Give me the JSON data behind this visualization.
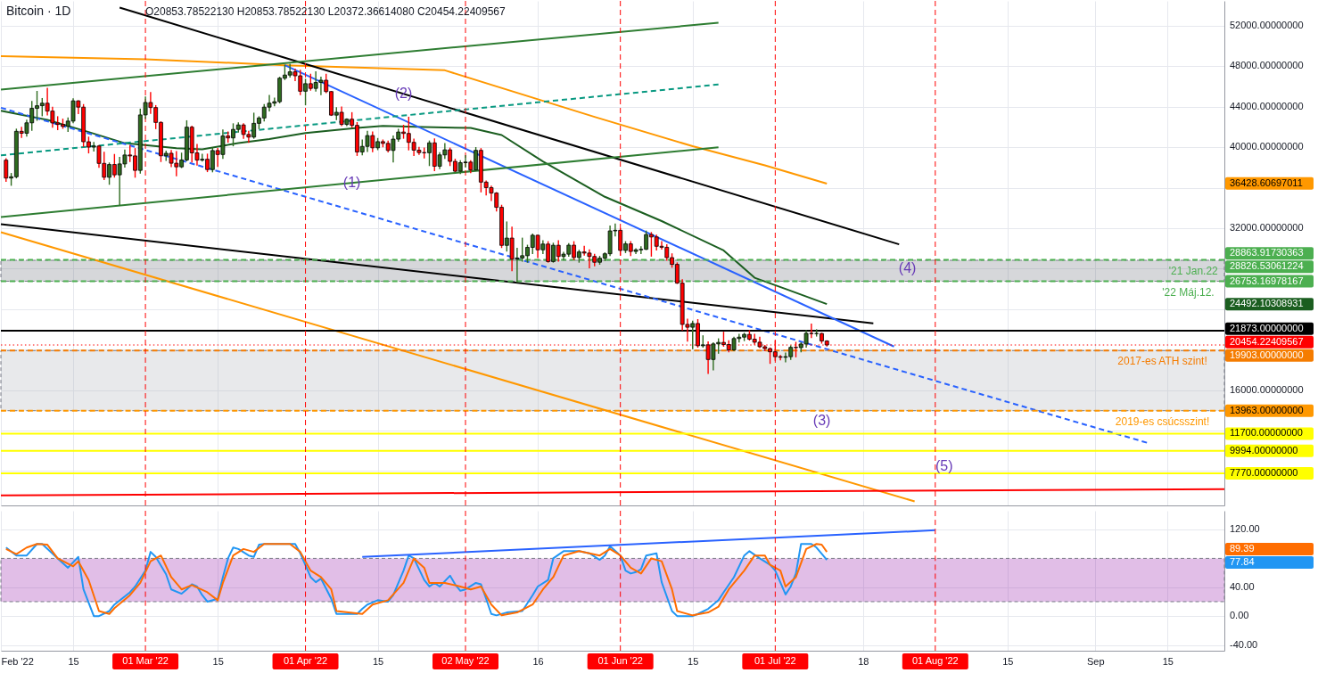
{
  "chart_data": [
    {
      "type": "candlestick",
      "title": "Bitcoin · 1D",
      "subtitle": "O20853.78522130 H20853.78522130 L20372.36614080 C20454.22409567",
      "x": [
        "2022-02-02",
        "2022-02-03",
        "2022-02-04",
        "2022-02-05",
        "2022-02-06",
        "2022-02-07",
        "2022-02-08",
        "2022-02-09",
        "2022-02-10",
        "2022-02-11",
        "2022-02-12",
        "2022-02-13",
        "2022-02-14",
        "2022-02-15",
        "2022-02-16",
        "2022-02-17",
        "2022-02-18",
        "2022-02-19",
        "2022-02-20",
        "2022-02-21",
        "2022-02-22",
        "2022-02-23",
        "2022-02-24",
        "2022-02-25",
        "2022-02-26",
        "2022-02-27",
        "2022-02-28",
        "2022-03-01",
        "2022-03-02",
        "2022-03-03",
        "2022-03-04",
        "2022-03-05",
        "2022-03-06",
        "2022-03-07",
        "2022-03-08",
        "2022-03-09",
        "2022-03-10",
        "2022-03-11",
        "2022-03-12",
        "2022-03-13",
        "2022-03-14",
        "2022-03-15",
        "2022-03-16",
        "2022-03-17",
        "2022-03-18",
        "2022-03-19",
        "2022-03-20",
        "2022-03-21",
        "2022-03-22",
        "2022-03-23",
        "2022-03-24",
        "2022-03-25",
        "2022-03-26",
        "2022-03-27",
        "2022-03-28",
        "2022-03-29",
        "2022-03-30",
        "2022-03-31",
        "2022-04-01",
        "2022-04-02",
        "2022-04-03",
        "2022-04-04",
        "2022-04-05",
        "2022-04-06",
        "2022-04-07",
        "2022-04-08",
        "2022-04-09",
        "2022-04-10",
        "2022-04-11",
        "2022-04-12",
        "2022-04-13",
        "2022-04-14",
        "2022-04-15",
        "2022-04-16",
        "2022-04-17",
        "2022-04-18",
        "2022-04-19",
        "2022-04-20",
        "2022-04-21",
        "2022-04-22",
        "2022-04-23",
        "2022-04-24",
        "2022-04-25",
        "2022-04-26",
        "2022-04-27",
        "2022-04-28",
        "2022-04-29",
        "2022-04-30",
        "2022-05-01",
        "2022-05-02",
        "2022-05-03",
        "2022-05-04",
        "2022-05-05",
        "2022-05-06",
        "2022-05-07",
        "2022-05-08",
        "2022-05-09",
        "2022-05-10",
        "2022-05-11",
        "2022-05-12",
        "2022-05-13",
        "2022-05-14",
        "2022-05-15",
        "2022-05-16",
        "2022-05-17",
        "2022-05-18",
        "2022-05-19",
        "2022-05-20",
        "2022-05-21",
        "2022-05-22",
        "2022-05-23",
        "2022-05-24",
        "2022-05-25",
        "2022-05-26",
        "2022-05-27",
        "2022-05-28",
        "2022-05-29",
        "2022-05-30",
        "2022-05-31",
        "2022-06-01",
        "2022-06-02",
        "2022-06-03",
        "2022-06-04",
        "2022-06-05",
        "2022-06-06",
        "2022-06-07",
        "2022-06-08",
        "2022-06-09",
        "2022-06-10",
        "2022-06-11",
        "2022-06-12",
        "2022-06-13",
        "2022-06-14",
        "2022-06-15",
        "2022-06-16",
        "2022-06-17",
        "2022-06-18",
        "2022-06-19",
        "2022-06-20",
        "2022-06-21",
        "2022-06-22",
        "2022-06-23",
        "2022-06-24",
        "2022-06-25",
        "2022-06-26",
        "2022-06-27",
        "2022-06-28",
        "2022-06-29",
        "2022-06-30",
        "2022-07-01",
        "2022-07-02",
        "2022-07-03",
        "2022-07-04",
        "2022-07-05",
        "2022-07-06",
        "2022-07-07",
        "2022-07-08",
        "2022-07-09",
        "2022-07-10",
        "2022-07-11"
      ],
      "ohlc": [
        [
          38720,
          38860,
          36630,
          36950
        ],
        [
          36950,
          37390,
          36250,
          37080
        ],
        [
          37080,
          41770,
          36980,
          41570
        ],
        [
          41570,
          41950,
          40980,
          41380
        ],
        [
          41380,
          42660,
          41120,
          42410
        ],
        [
          42410,
          44500,
          41680,
          43840
        ],
        [
          43840,
          45500,
          42670,
          44100
        ],
        [
          44100,
          44800,
          43120,
          44350
        ],
        [
          44350,
          45820,
          43200,
          43570
        ],
        [
          43570,
          43940,
          42000,
          42400
        ],
        [
          42400,
          43000,
          41750,
          42250
        ],
        [
          42250,
          42760,
          41880,
          42060
        ],
        [
          42060,
          42880,
          41570,
          42580
        ],
        [
          42580,
          44770,
          42430,
          44580
        ],
        [
          44580,
          44580,
          43330,
          43960
        ],
        [
          43960,
          44200,
          40080,
          40540
        ],
        [
          40540,
          40980,
          39450,
          40010
        ],
        [
          40010,
          40450,
          39640,
          40120
        ],
        [
          40120,
          40150,
          38020,
          38400
        ],
        [
          38400,
          39490,
          36810,
          37030
        ],
        [
          37030,
          38430,
          36350,
          38290
        ],
        [
          38290,
          39270,
          37060,
          37270
        ],
        [
          37270,
          38980,
          34320,
          38350
        ],
        [
          38350,
          39700,
          38050,
          39230
        ],
        [
          39230,
          40120,
          38600,
          39140
        ],
        [
          39140,
          39850,
          37050,
          37710
        ],
        [
          37710,
          43750,
          37450,
          43190
        ],
        [
          43190,
          44950,
          42850,
          44420
        ],
        [
          44420,
          45400,
          43350,
          43920
        ],
        [
          43920,
          44100,
          41850,
          42450
        ],
        [
          42450,
          42500,
          38600,
          39150
        ],
        [
          39150,
          39600,
          38700,
          39400
        ],
        [
          39400,
          39660,
          38100,
          38420
        ],
        [
          38420,
          39550,
          37180,
          38060
        ],
        [
          38060,
          39400,
          38000,
          38740
        ],
        [
          38740,
          42600,
          38670,
          41980
        ],
        [
          41980,
          42060,
          38550,
          39440
        ],
        [
          39440,
          40250,
          38250,
          38730
        ],
        [
          38730,
          39300,
          38650,
          38810
        ],
        [
          38810,
          39300,
          37600,
          37790
        ],
        [
          37790,
          39920,
          37580,
          39670
        ],
        [
          39670,
          39870,
          38120,
          39280
        ],
        [
          39280,
          41700,
          38900,
          41110
        ],
        [
          41110,
          41500,
          40520,
          40920
        ],
        [
          40920,
          42300,
          40150,
          41760
        ],
        [
          41760,
          42400,
          41500,
          42200
        ],
        [
          42200,
          42300,
          40900,
          41260
        ],
        [
          41260,
          41550,
          40500,
          41000
        ],
        [
          41000,
          43350,
          40900,
          42360
        ],
        [
          42360,
          43000,
          41850,
          42890
        ],
        [
          42890,
          44200,
          42600,
          43960
        ],
        [
          43960,
          45100,
          43600,
          44350
        ],
        [
          44350,
          44850,
          44100,
          44500
        ],
        [
          44500,
          46900,
          44400,
          46820
        ],
        [
          46820,
          48100,
          46700,
          47130
        ],
        [
          47130,
          48190,
          46950,
          47450
        ],
        [
          47450,
          47700,
          46600,
          47060
        ],
        [
          47060,
          47600,
          45200,
          45530
        ],
        [
          45530,
          46700,
          44200,
          46280
        ],
        [
          46280,
          47200,
          45650,
          45810
        ],
        [
          45810,
          47450,
          45550,
          46400
        ],
        [
          46400,
          46900,
          45200,
          46620
        ],
        [
          46620,
          47200,
          45400,
          45500
        ],
        [
          45500,
          45500,
          43150,
          43170
        ],
        [
          43170,
          43900,
          42750,
          43450
        ],
        [
          43450,
          43950,
          42150,
          42250
        ],
        [
          42250,
          42800,
          42150,
          42770
        ],
        [
          42770,
          43400,
          42000,
          42160
        ],
        [
          42160,
          42420,
          39200,
          39530
        ],
        [
          39530,
          40700,
          39250,
          40080
        ],
        [
          40080,
          41550,
          39600,
          41150
        ],
        [
          41150,
          41500,
          39570,
          39940
        ],
        [
          39940,
          40850,
          39770,
          40550
        ],
        [
          40550,
          40700,
          40050,
          40380
        ],
        [
          40380,
          40600,
          39550,
          39680
        ],
        [
          39680,
          41100,
          38550,
          40800
        ],
        [
          40800,
          41750,
          40600,
          41500
        ],
        [
          41500,
          42150,
          40900,
          41360
        ],
        [
          41360,
          42950,
          39750,
          40480
        ],
        [
          40480,
          40780,
          39200,
          39710
        ],
        [
          39710,
          39980,
          39300,
          39470
        ],
        [
          39470,
          39900,
          38950,
          39450
        ],
        [
          39450,
          40600,
          38200,
          40430
        ],
        [
          40430,
          40800,
          37700,
          38120
        ],
        [
          38120,
          39450,
          37900,
          39240
        ],
        [
          39240,
          40350,
          38900,
          39740
        ],
        [
          39740,
          39900,
          38200,
          38600
        ],
        [
          38600,
          38800,
          37600,
          37630
        ],
        [
          37630,
          38650,
          37400,
          38470
        ],
        [
          38470,
          39150,
          38050,
          38530
        ],
        [
          38530,
          38650,
          37500,
          37750
        ],
        [
          37750,
          39950,
          37700,
          39690
        ],
        [
          39690,
          39850,
          35600,
          36550
        ],
        [
          36550,
          36650,
          35300,
          36010
        ],
        [
          36010,
          36150,
          34750,
          35470
        ],
        [
          35470,
          35500,
          33700,
          34060
        ],
        [
          34060,
          34250,
          30100,
          30300
        ],
        [
          30300,
          32600,
          29750,
          31020
        ],
        [
          31020,
          32100,
          27800,
          28940
        ],
        [
          28940,
          30000,
          26700,
          29050
        ],
        [
          29050,
          31000,
          28750,
          29280
        ],
        [
          29280,
          30300,
          28650,
          30100
        ],
        [
          30100,
          31400,
          29500,
          31300
        ],
        [
          31300,
          31300,
          29100,
          29860
        ],
        [
          29860,
          30750,
          29500,
          30430
        ],
        [
          30430,
          30650,
          28650,
          28700
        ],
        [
          28700,
          30500,
          28650,
          30310
        ],
        [
          30310,
          30750,
          28750,
          29200
        ],
        [
          29200,
          29600,
          28900,
          29430
        ],
        [
          29430,
          30450,
          29250,
          30320
        ],
        [
          30320,
          30650,
          28900,
          29100
        ],
        [
          29100,
          29800,
          28650,
          29650
        ],
        [
          29650,
          30200,
          29350,
          29540
        ],
        [
          29540,
          29850,
          28100,
          29200
        ],
        [
          29200,
          29400,
          28300,
          28630
        ],
        [
          28630,
          29200,
          28450,
          29030
        ],
        [
          29030,
          29550,
          28800,
          29470
        ],
        [
          29470,
          32200,
          29300,
          31730
        ],
        [
          31730,
          32400,
          31250,
          31790
        ],
        [
          31790,
          31950,
          29350,
          29800
        ],
        [
          29800,
          30650,
          29600,
          30450
        ],
        [
          30450,
          30650,
          29300,
          29700
        ],
        [
          29700,
          29950,
          29500,
          29860
        ],
        [
          29860,
          30150,
          29500,
          29910
        ],
        [
          29910,
          31700,
          29900,
          31370
        ],
        [
          31370,
          31550,
          29250,
          31130
        ],
        [
          31130,
          31300,
          29850,
          30210
        ],
        [
          30210,
          30650,
          29950,
          30110
        ],
        [
          30110,
          30350,
          28850,
          29090
        ],
        [
          29090,
          29450,
          28150,
          28420
        ],
        [
          28420,
          28550,
          26550,
          26570
        ],
        [
          26570,
          26900,
          21950,
          22490
        ],
        [
          22490,
          23000,
          20850,
          22210
        ],
        [
          22210,
          22800,
          20100,
          22580
        ],
        [
          22580,
          22950,
          20250,
          20380
        ],
        [
          20380,
          21350,
          20250,
          20470
        ],
        [
          20470,
          20750,
          17650,
          19020
        ],
        [
          19020,
          20650,
          18000,
          20560
        ],
        [
          20560,
          21050,
          19650,
          20710
        ],
        [
          20710,
          21700,
          20350,
          20500
        ],
        [
          20500,
          20850,
          19800,
          19970
        ],
        [
          19970,
          21200,
          19900,
          21090
        ],
        [
          21090,
          21500,
          20750,
          21230
        ],
        [
          21230,
          21600,
          20900,
          21500
        ],
        [
          21500,
          21850,
          20950,
          21030
        ],
        [
          21030,
          21500,
          20550,
          20730
        ],
        [
          20730,
          21200,
          20200,
          20280
        ],
        [
          20280,
          20400,
          19900,
          20100
        ],
        [
          20100,
          20150,
          18650,
          19780
        ],
        [
          19780,
          20850,
          18950,
          19300
        ],
        [
          19300,
          19400,
          19000,
          19240
        ],
        [
          19240,
          19650,
          18800,
          19300
        ],
        [
          19300,
          20350,
          19050,
          20220
        ],
        [
          20220,
          20700,
          19300,
          20190
        ],
        [
          20190,
          20650,
          19800,
          20550
        ],
        [
          20550,
          21850,
          20250,
          21610
        ],
        [
          21610,
          22500,
          21200,
          21580
        ],
        [
          21580,
          21950,
          21350,
          21590
        ],
        [
          21590,
          21600,
          20650,
          20850
        ],
        [
          20853.7852213,
          20853.7852213,
          20372.3661408,
          20454.22409567
        ]
      ],
      "series": [
        {
          "type": "line",
          "color": "#ff9800",
          "x": [
            "2022-02-01",
            "2022-03-01",
            "2022-03-28",
            "2022-04-28",
            "2022-05-27",
            "2022-06-15",
            "2022-06-29",
            "2022-07-11"
          ],
          "values": [
            49000,
            48700,
            48100,
            47600,
            43000,
            40100,
            38200,
            36400
          ]
        },
        {
          "type": "line",
          "color": "#1b5e20",
          "x": [
            "2022-02-01",
            "2022-02-10",
            "2022-02-18",
            "2022-02-25",
            "2022-03-07",
            "2022-03-12",
            "2022-03-19",
            "2022-03-25",
            "2022-04-01",
            "2022-04-11",
            "2022-04-16",
            "2022-04-24",
            "2022-05-03",
            "2022-05-09",
            "2022-05-17",
            "2022-05-29",
            "2022-06-09",
            "2022-06-21",
            "2022-06-27",
            "2022-07-03",
            "2022-07-11"
          ],
          "values": [
            43600,
            42700,
            41500,
            40400,
            39900,
            39800,
            40400,
            40800,
            41400,
            41900,
            42100,
            42000,
            41900,
            41200,
            38600,
            35100,
            32700,
            29800,
            27100,
            26000,
            24500
          ]
        },
        {
          "type": "line",
          "color": "#000000",
          "x": [
            "2022-02-24",
            "2022-07-25"
          ],
          "values": [
            53800,
            30400
          ]
        },
        {
          "type": "line",
          "color": "#000000",
          "x": [
            "2022-02-01",
            "2022-07-20"
          ],
          "values": [
            32400,
            22600
          ]
        },
        {
          "type": "line",
          "color": "#2962ff",
          "x": [
            "2022-03-28",
            "2022-07-24"
          ],
          "values": [
            48100,
            20300
          ]
        },
        {
          "type": "line",
          "color": "#2962ff",
          "line_style": "dashed",
          "x": [
            "2022-02-01",
            "2022-09-11"
          ],
          "values": [
            43900,
            10800
          ]
        },
        {
          "type": "line",
          "color": "#2e7d32",
          "x": [
            "2022-02-01",
            "2022-06-20"
          ],
          "values": [
            45700,
            52300
          ]
        },
        {
          "type": "line",
          "color": "#2e7d32",
          "x": [
            "2022-02-01",
            "2022-06-20"
          ],
          "values": [
            33100,
            40000
          ]
        },
        {
          "type": "line",
          "color": "#089981",
          "line_style": "dashed",
          "x": [
            "2022-02-01",
            "2022-06-20"
          ],
          "values": [
            39200,
            46200
          ]
        },
        {
          "type": "line",
          "color": "#ff9800",
          "x": [
            "2022-02-01",
            "2022-07-28"
          ],
          "values": [
            31600,
            5000
          ]
        },
        {
          "type": "line",
          "color": "#ff0000",
          "x": [
            "2022-02-01",
            "2022-09-26"
          ],
          "values": [
            5600,
            6200
          ]
        }
      ],
      "xlim": [
        "2022-02-01",
        "2022-09-26"
      ],
      "xticks": [
        {
          "value": "2022-02-01",
          "label": null
        },
        {
          "value": "2022-02-15",
          "label": null
        },
        {
          "value": "2022-03-15",
          "label": null
        },
        {
          "value": "2022-04-15",
          "label": null
        },
        {
          "value": "2022-05-16",
          "label": null
        },
        {
          "value": "2022-06-15",
          "label": null
        },
        {
          "value": "2022-07-18",
          "label": null
        },
        {
          "value": "2022-08-15",
          "label": null
        },
        {
          "value": "2022-09-01",
          "label": null
        },
        {
          "value": "2022-09-15",
          "label": null
        }
      ],
      "ylim": [
        4600,
        54460
      ],
      "yticks": [
        {
          "value": 52000,
          "label": "52000.00000000"
        },
        {
          "value": 48000,
          "label": "48000.00000000"
        },
        {
          "value": 44000,
          "label": "44000.00000000"
        },
        {
          "value": 40000,
          "label": "40000.00000000"
        },
        {
          "value": 36000,
          "label": null
        },
        {
          "value": 32000,
          "label": "32000.00000000"
        },
        {
          "value": 28000,
          "label": null
        },
        {
          "value": 24000,
          "label": null
        },
        {
          "value": 20000,
          "label": null
        },
        {
          "value": 16000,
          "label": "16000.00000000"
        },
        {
          "value": 12000,
          "label": null
        },
        {
          "value": 8000,
          "label": null
        },
        {
          "value": 36428.60697011,
          "label": "36428.60697011"
        },
        {
          "value": 24492.10308931,
          "label": "24492.10308931"
        }
      ],
      "tick_labels": "y",
      "grid": true,
      "bands": [
        {
          "axis": "y",
          "from": 26753.16978167,
          "to": 28826.53061224,
          "color": "#787b86",
          "label": "28826.53061224"
        },
        {
          "axis": "y",
          "from": 13963,
          "to": 19903,
          "color": "#b2b5be"
        }
      ],
      "ref_lines": [
        {
          "axis": "y",
          "value": 28863.91730363,
          "label": "28863.91730363",
          "color": "#4caf50",
          "line_style": "dashed"
        },
        {
          "axis": "y",
          "value": 26753.16978167,
          "label": "26753.16978167",
          "color": "#4caf50",
          "line_style": "dashed"
        },
        {
          "axis": "y",
          "value": 21873,
          "label": "21873.00000000",
          "color": "#000000"
        },
        {
          "axis": "y",
          "value": 20454.22409567,
          "label": "20454.22409567",
          "color": "#ff0000",
          "line_style": "dotted"
        },
        {
          "axis": "y",
          "value": 19903,
          "label": "19903.00000000",
          "color": "#f57c00",
          "line_style": "dashed"
        },
        {
          "axis": "y",
          "value": 13963,
          "label": "13963.00000000",
          "color": "#ff9800",
          "line_style": "dashed"
        },
        {
          "axis": "y",
          "value": 11700,
          "label": "11700.00000000",
          "color": "#ffff00"
        },
        {
          "axis": "y",
          "value": 9994,
          "label": "9994.00000000",
          "color": "#ffff00"
        },
        {
          "axis": "y",
          "value": 7770,
          "label": "7770.00000000",
          "color": "#ffff00"
        },
        {
          "axis": "x",
          "value": "2022-03-01",
          "color": "#ff0000",
          "line_style": "dashed"
        },
        {
          "axis": "x",
          "value": "2022-04-01",
          "color": "#ff0000",
          "line_style": "dashed"
        },
        {
          "axis": "x",
          "value": "2022-05-02",
          "color": "#ff0000",
          "line_style": "dashed"
        },
        {
          "axis": "x",
          "value": "2022-06-01",
          "color": "#ff0000",
          "line_style": "dashed"
        },
        {
          "axis": "x",
          "value": "2022-07-01",
          "color": "#ff0000",
          "line_style": "dashed"
        },
        {
          "axis": "x",
          "value": "2022-08-01",
          "color": "#ff0000",
          "line_style": "dashed"
        }
      ],
      "annotations": [
        {
          "text": "(1)",
          "x": "2022-04-10",
          "y": 36500
        },
        {
          "text": "(2)",
          "x": "2022-04-20",
          "y": 45300
        },
        "(3)",
        "(4)",
        "(5)",
        {
          "text": "'21 Jan.22",
          "x": "2022-09-20",
          "y": 28863.91730363
        },
        {
          "text": "'22 Máj.12.",
          "x": "2022-09-19",
          "y": 26753.16978167
        },
        {
          "text": "2017-es ATH szint!",
          "x": "2022-09-14",
          "y": 19903
        },
        {
          "text": "2019-es csúcsszint!",
          "x": "2022-09-14",
          "y": 13963
        }
      ]
    },
    {
      "type": "line",
      "series": [
        {
          "color": "#2196f3",
          "x": [
            "2022-02-02",
            "2022-02-04",
            "2022-02-06",
            "2022-02-08",
            "2022-02-09",
            "2022-02-12",
            "2022-02-14",
            "2022-02-16",
            "2022-02-17",
            "2022-02-19",
            "2022-02-20",
            "2022-02-22",
            "2022-02-23",
            "2022-02-26",
            "2022-02-27",
            "2022-03-01",
            "2022-03-02",
            "2022-03-03",
            "2022-03-05",
            "2022-03-06",
            "2022-03-08",
            "2022-03-09",
            "2022-03-10",
            "2022-03-11",
            "2022-03-12",
            "2022-03-13",
            "2022-03-15",
            "2022-03-16",
            "2022-03-17",
            "2022-03-18",
            "2022-03-19",
            "2022-03-21",
            "2022-03-22",
            "2022-03-23",
            "2022-03-24",
            "2022-03-28",
            "2022-03-30",
            "2022-03-31",
            "2022-04-02",
            "2022-04-03",
            "2022-04-04",
            "2022-04-06",
            "2022-04-07",
            "2022-04-11",
            "2022-04-12",
            "2022-04-13",
            "2022-04-15",
            "2022-04-17",
            "2022-04-18",
            "2022-04-20",
            "2022-04-21",
            "2022-04-22",
            "2022-04-24",
            "2022-04-25",
            "2022-04-26",
            "2022-04-27",
            "2022-04-29",
            "2022-04-30",
            "2022-05-01",
            "2022-05-02",
            "2022-05-04",
            "2022-05-05",
            "2022-05-06",
            "2022-05-07",
            "2022-05-08",
            "2022-05-10",
            "2022-05-13",
            "2022-05-15",
            "2022-05-16",
            "2022-05-18",
            "2022-05-19",
            "2022-05-21",
            "2022-05-24",
            "2022-05-26",
            "2022-05-28",
            "2022-05-29",
            "2022-05-30",
            "2022-06-01",
            "2022-06-02",
            "2022-06-03",
            "2022-06-04",
            "2022-06-05",
            "2022-06-06",
            "2022-06-08",
            "2022-06-09",
            "2022-06-11",
            "2022-06-12",
            "2022-06-15",
            "2022-06-16",
            "2022-06-18",
            "2022-06-20",
            "2022-06-21",
            "2022-06-23",
            "2022-06-25",
            "2022-06-26",
            "2022-06-28",
            "2022-06-30",
            "2022-07-01",
            "2022-07-03",
            "2022-07-04",
            "2022-07-05",
            "2022-07-06",
            "2022-07-08",
            "2022-07-09",
            "2022-07-11"
          ],
          "values": [
            95,
            84,
            84,
            100,
            100,
            80,
            67,
            82,
            37,
            0,
            0,
            7,
            16,
            33,
            41,
            63,
            89,
            82,
            58,
            37,
            31,
            37,
            44,
            41,
            29,
            20,
            24,
            54,
            80,
            95,
            93,
            84,
            82,
            99,
            100,
            100,
            100,
            87,
            54,
            47,
            52,
            24,
            3,
            3,
            10,
            16,
            22,
            20,
            29,
            63,
            84,
            80,
            50,
            41,
            46,
            41,
            56,
            44,
            35,
            37,
            46,
            44,
            24,
            3,
            1,
            5,
            7,
            29,
            41,
            50,
            80,
            90,
            90,
            87,
            78,
            84,
            97,
            84,
            63,
            59,
            61,
            65,
            84,
            87,
            47,
            7,
            0,
            0,
            3,
            10,
            22,
            33,
            54,
            84,
            90,
            80,
            71,
            63,
            30,
            41,
            59,
            100,
            100,
            95,
            78
          ]
        },
        {
          "color": "#ff6d00",
          "x": [
            "2022-02-02",
            "2022-02-04",
            "2022-02-06",
            "2022-02-08",
            "2022-02-10",
            "2022-02-12",
            "2022-02-15",
            "2022-02-16",
            "2022-02-18",
            "2022-02-20",
            "2022-02-22",
            "2022-02-23",
            "2022-02-26",
            "2022-02-28",
            "2022-03-02",
            "2022-03-04",
            "2022-03-06",
            "2022-03-08",
            "2022-03-10",
            "2022-03-13",
            "2022-03-15",
            "2022-03-16",
            "2022-03-18",
            "2022-03-20",
            "2022-03-22",
            "2022-03-24",
            "2022-03-29",
            "2022-03-31",
            "2022-04-02",
            "2022-04-04",
            "2022-04-06",
            "2022-04-07",
            "2022-04-12",
            "2022-04-14",
            "2022-04-17",
            "2022-04-20",
            "2022-04-22",
            "2022-04-24",
            "2022-04-25",
            "2022-04-28",
            "2022-05-01",
            "2022-05-03",
            "2022-05-05",
            "2022-05-07",
            "2022-05-09",
            "2022-05-12",
            "2022-05-15",
            "2022-05-17",
            "2022-05-19",
            "2022-05-21",
            "2022-05-24",
            "2022-05-28",
            "2022-05-30",
            "2022-06-01",
            "2022-06-03",
            "2022-06-05",
            "2022-06-07",
            "2022-06-09",
            "2022-06-11",
            "2022-06-12",
            "2022-06-15",
            "2022-06-18",
            "2022-06-20",
            "2022-06-22",
            "2022-06-25",
            "2022-06-27",
            "2022-06-29",
            "2022-06-30",
            "2022-07-02",
            "2022-07-03",
            "2022-07-05",
            "2022-07-07",
            "2022-07-09",
            "2022-07-10",
            "2022-07-11"
          ],
          "values": [
            93,
            86,
            95,
            100,
            99,
            80,
            69,
            76,
            50,
            7,
            3,
            11,
            29,
            46,
            76,
            84,
            54,
            37,
            43,
            33,
            22,
            46,
            84,
            93,
            89,
            100,
            100,
            89,
            63,
            54,
            37,
            7,
            3,
            16,
            22,
            46,
            80,
            67,
            46,
            46,
            41,
            37,
            41,
            16,
            1,
            5,
            16,
            37,
            54,
            84,
            90,
            84,
            93,
            84,
            67,
            59,
            80,
            76,
            37,
            7,
            1,
            5,
            13,
            37,
            63,
            84,
            84,
            71,
            63,
            41,
            54,
            93,
            100,
            99,
            89
          ]
        },
        {
          "color": "#2962ff",
          "x": [
            "2022-04-12",
            "2022-08-01"
          ],
          "values": [
            82,
            119
          ]
        }
      ],
      "xlim": [
        "2022-02-01",
        "2022-09-26"
      ],
      "xticks": [
        {
          "value": "2022-02-01",
          "label": "Feb '22"
        },
        {
          "value": "2022-02-15",
          "label": "15"
        },
        {
          "value": "2022-03-15",
          "label": "15"
        },
        {
          "value": "2022-04-15",
          "label": "15"
        },
        {
          "value": "2022-05-16",
          "label": "16"
        },
        {
          "value": "2022-06-15",
          "label": "15"
        },
        {
          "value": "2022-07-18",
          "label": "18"
        },
        {
          "value": "2022-08-15",
          "label": "15"
        },
        {
          "value": "2022-09-01",
          "label": "Sep"
        },
        {
          "value": "2022-09-15",
          "label": "15"
        }
      ],
      "ylim": [
        -48,
        146
      ],
      "yticks": [
        {
          "value": 120,
          "label": "120.00"
        },
        {
          "value": 40,
          "label": "40.00"
        },
        {
          "value": 0,
          "label": "0.00"
        },
        {
          "value": -40,
          "label": "-40.00"
        },
        {
          "value": 89.39,
          "label": "89.39"
        },
        {
          "value": 77.84,
          "label": "77.84"
        }
      ],
      "grid": true,
      "bands": [
        {
          "axis": "y",
          "from": 20,
          "to": 80,
          "color": "#9c27b0"
        }
      ],
      "ref_lines": [
        {
          "axis": "x",
          "value": "2022-03-01",
          "label": "01 Mar '22",
          "color": "#ff0000",
          "line_style": "dashed"
        },
        {
          "axis": "x",
          "value": "2022-04-01",
          "label": "01 Apr '22",
          "color": "#ff0000",
          "line_style": "dashed"
        },
        {
          "axis": "x",
          "value": "2022-05-02",
          "label": "02 May '22",
          "color": "#ff0000",
          "line_style": "dashed"
        },
        {
          "axis": "x",
          "value": "2022-06-01",
          "label": "01 Jun '22",
          "color": "#ff0000",
          "line_style": "dashed"
        },
        {
          "axis": "x",
          "value": "2022-07-01",
          "label": "01 Jul '22",
          "color": "#ff0000",
          "line_style": "dashed"
        },
        {
          "axis": "x",
          "value": "2022-08-01",
          "label": "01 Aug '22",
          "color": "#ff0000",
          "line_style": "dashed"
        }
      ]
    }
  ]
}
